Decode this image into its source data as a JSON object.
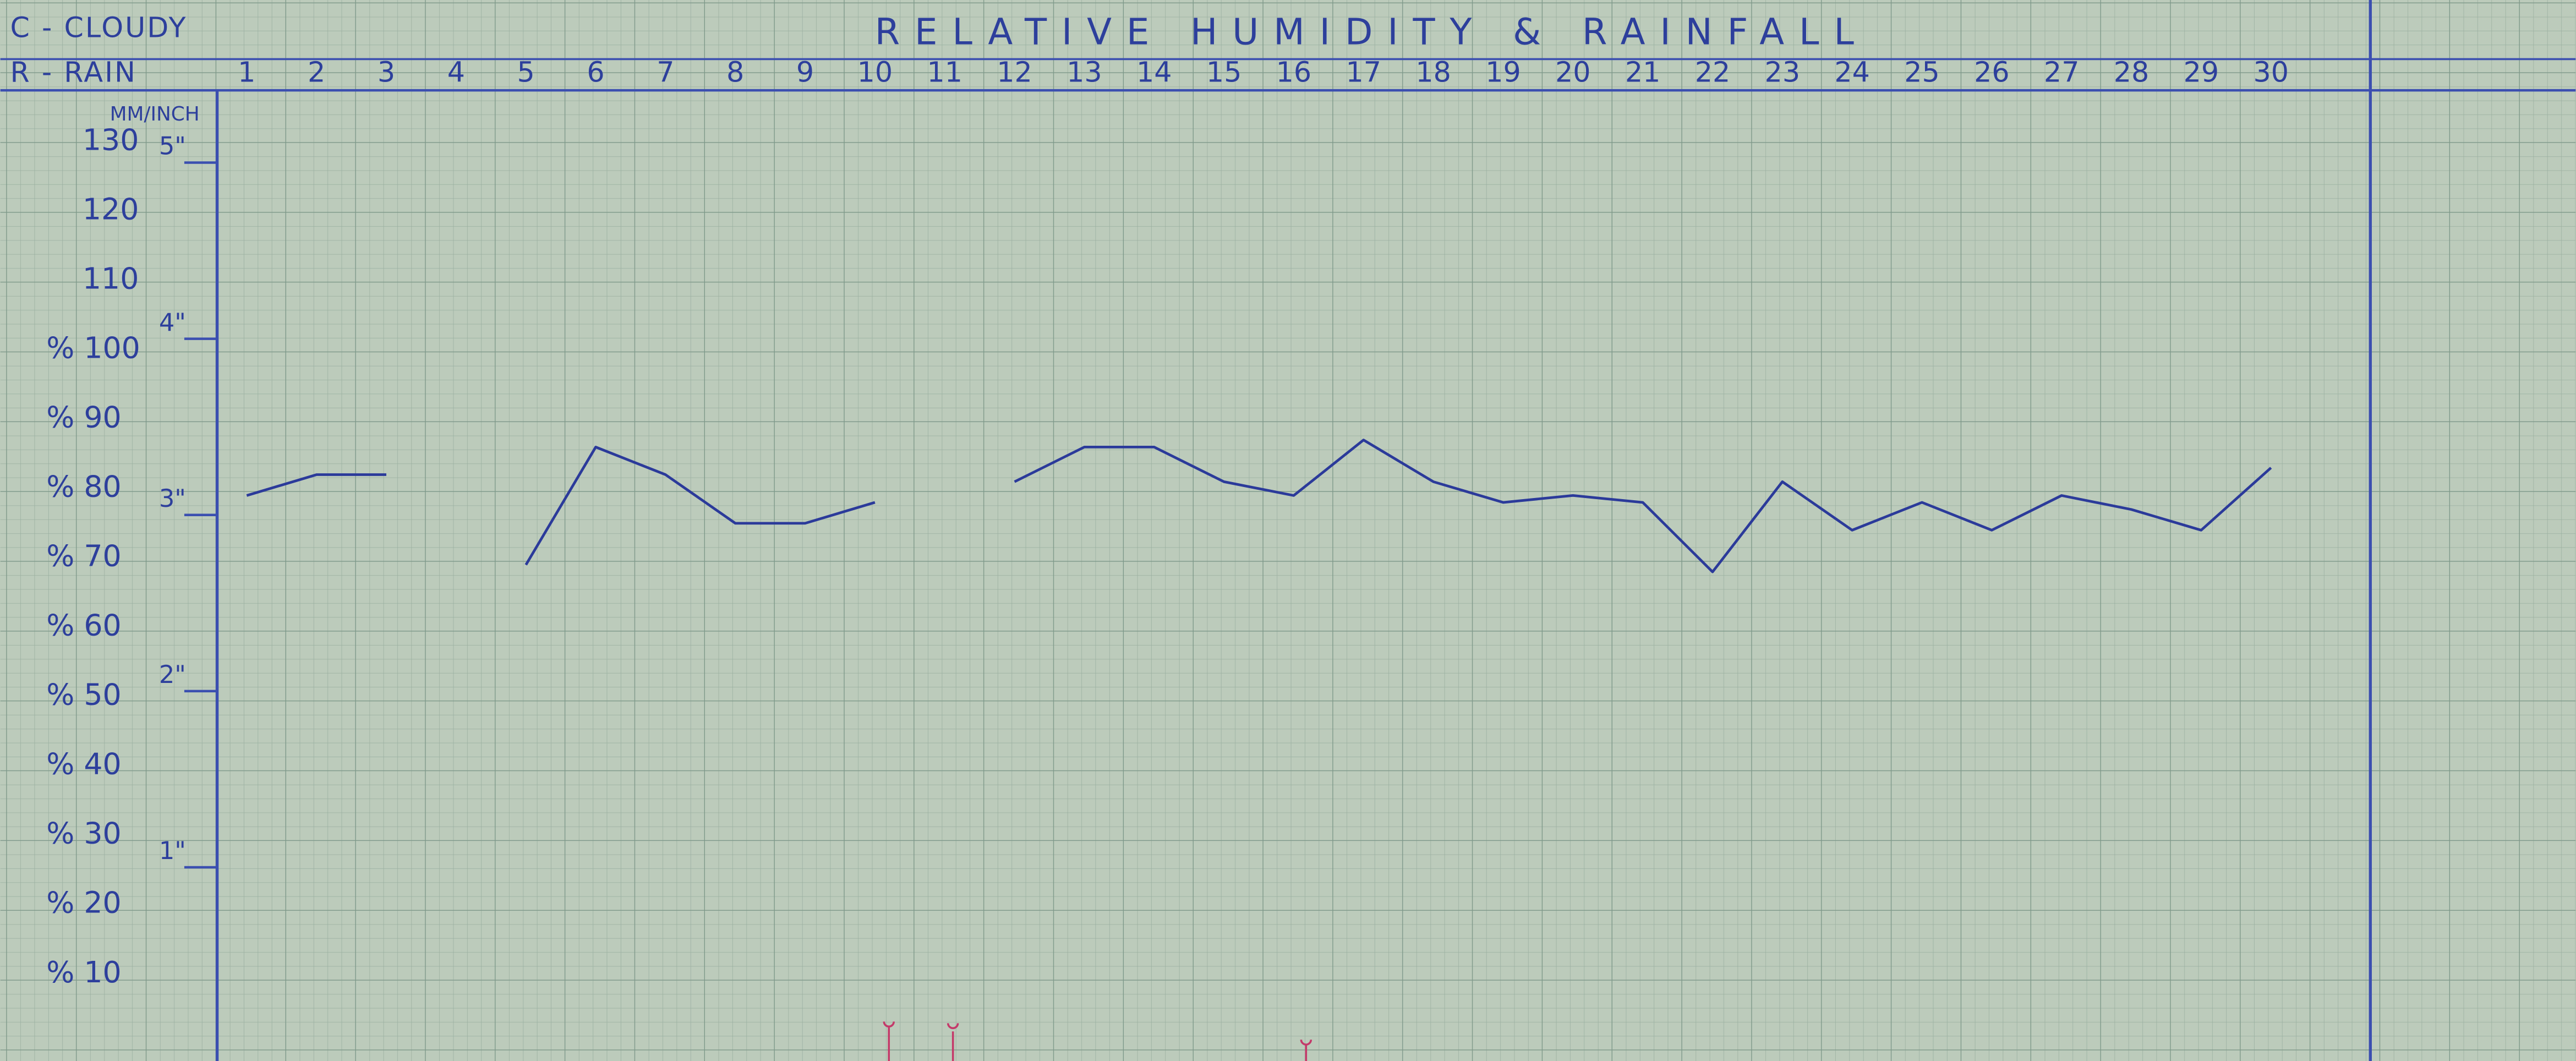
{
  "chart_data": {
    "type": "line",
    "title": "RELATIVE HUMIDITY & RAINFALL",
    "legend_items": [
      "C - CLOUDY",
      "R - RAIN"
    ],
    "axis_label": "MM/INCH",
    "categories": [
      "1",
      "2",
      "3",
      "4",
      "5",
      "6",
      "7",
      "8",
      "9",
      "10",
      "11",
      "12",
      "13",
      "14",
      "15",
      "16",
      "17",
      "18",
      "19",
      "20",
      "21",
      "22",
      "23",
      "24",
      "25",
      "26",
      "27",
      "28",
      "29",
      "30"
    ],
    "values": [
      79,
      82,
      82,
      null,
      69,
      86,
      82,
      75,
      75,
      78,
      null,
      81,
      86,
      86,
      81,
      79,
      87,
      81,
      78,
      79,
      78,
      68,
      81,
      74,
      78,
      74,
      79,
      77,
      74,
      83
    ],
    "color": "#2b3a9a",
    "ylim": [
      -3,
      136
    ],
    "yticks": [
      130,
      120,
      110,
      {
        "value": 100,
        "label": "% 100"
      },
      {
        "value": 90,
        "label": "% 90"
      },
      {
        "value": 80,
        "label": "% 80"
      },
      {
        "value": 70,
        "label": "% 70"
      },
      {
        "value": 60,
        "label": "% 60"
      },
      {
        "value": 50,
        "label": "% 50"
      },
      {
        "value": 40,
        "label": "% 40"
      },
      {
        "value": 30,
        "label": "% 30"
      },
      {
        "value": 20,
        "label": "% 20"
      },
      {
        "value": 10,
        "label": "% 10"
      }
    ],
    "y2lim": [
      -3,
      136
    ],
    "y2ticks": [
      {
        "value": 127,
        "label": "5\""
      },
      {
        "value": 101.6,
        "label": "4\""
      },
      {
        "value": 76.2,
        "label": "3\""
      },
      {
        "value": 50.8,
        "label": "2\""
      },
      {
        "value": 25.4,
        "label": "1\""
      }
    ]
  }
}
